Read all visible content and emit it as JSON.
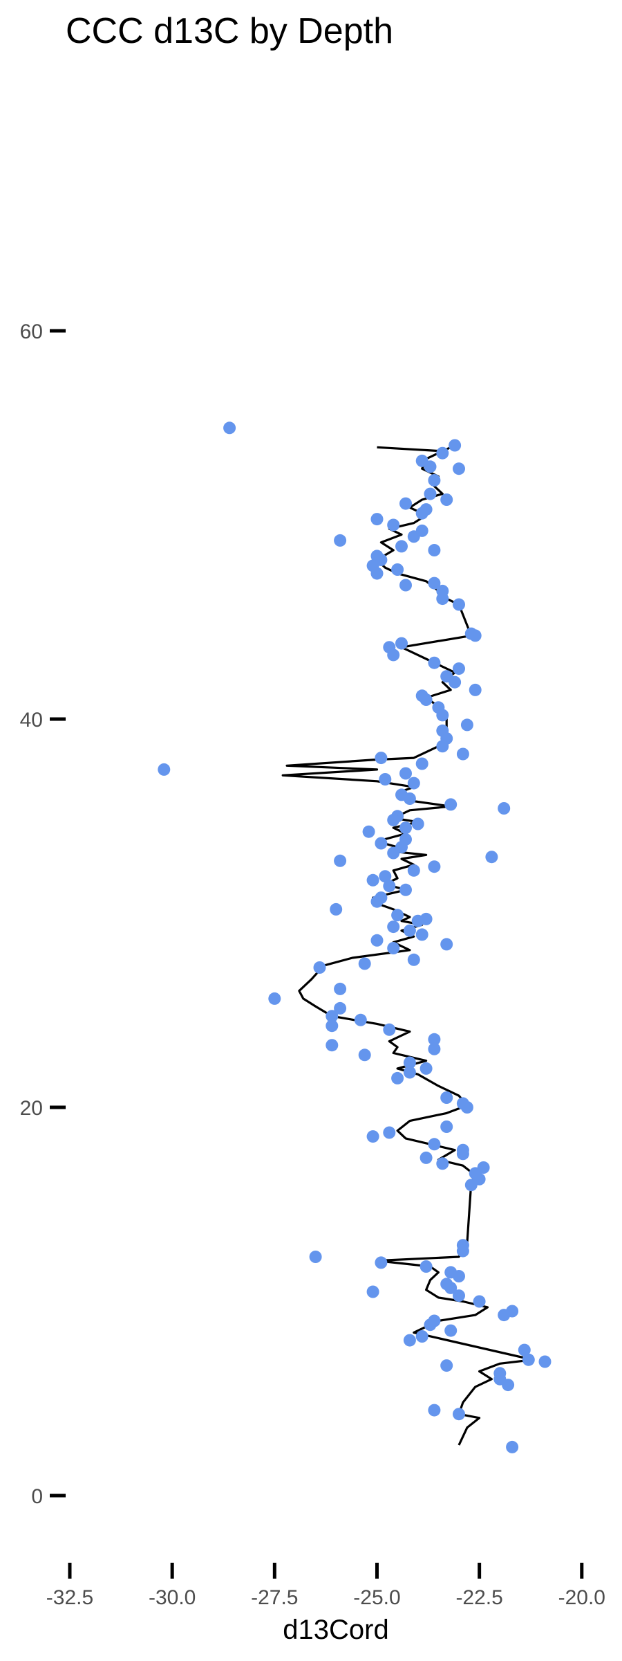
{
  "chart_data": {
    "type": "scatter",
    "title": "CCC d13C by Depth",
    "xlabel": "d13Cord",
    "ylabel": "",
    "xlim": [
      -33.0,
      -19.9
    ],
    "ylim": [
      -3.5,
      64
    ],
    "xticks": [
      -32.5,
      -30.0,
      -27.5,
      -25.0,
      -22.5,
      -20.0
    ],
    "xtick_labels": [
      "-32.5",
      "-30.0",
      "-27.5",
      "-25.0",
      "-22.5",
      "-20.0"
    ],
    "yticks": [
      0,
      20,
      40,
      60
    ],
    "ytick_labels": [
      "0",
      "20",
      "40",
      "60"
    ],
    "grid": false,
    "colors": {
      "points": "#6495ed",
      "line": "#000000"
    },
    "series": [
      {
        "type": "scatter",
        "points": [
          [
            -28.6,
            55.0
          ],
          [
            -30.2,
            37.4
          ],
          [
            -27.5,
            25.6
          ],
          [
            -26.5,
            12.3
          ],
          [
            -25.1,
            10.5
          ],
          [
            -23.1,
            54.1
          ],
          [
            -23.4,
            53.7
          ],
          [
            -23.9,
            53.3
          ],
          [
            -23.7,
            53.0
          ],
          [
            -23.0,
            52.9
          ],
          [
            -23.6,
            52.3
          ],
          [
            -23.7,
            51.6
          ],
          [
            -23.3,
            51.3
          ],
          [
            -24.3,
            51.1
          ],
          [
            -23.8,
            50.8
          ],
          [
            -23.9,
            50.6
          ],
          [
            -25.0,
            50.3
          ],
          [
            -24.6,
            50.0
          ],
          [
            -23.9,
            49.7
          ],
          [
            -24.1,
            49.4
          ],
          [
            -25.9,
            49.2
          ],
          [
            -24.4,
            48.9
          ],
          [
            -23.6,
            48.7
          ],
          [
            -25.0,
            48.4
          ],
          [
            -24.9,
            48.2
          ],
          [
            -25.1,
            47.9
          ],
          [
            -24.5,
            47.7
          ],
          [
            -25.0,
            47.5
          ],
          [
            -23.6,
            47.0
          ],
          [
            -24.3,
            46.9
          ],
          [
            -23.4,
            46.6
          ],
          [
            -23.4,
            46.2
          ],
          [
            -23.0,
            45.9
          ],
          [
            -22.7,
            44.4
          ],
          [
            -22.6,
            44.3
          ],
          [
            -24.4,
            43.9
          ],
          [
            -24.7,
            43.7
          ],
          [
            -24.6,
            43.3
          ],
          [
            -23.6,
            42.9
          ],
          [
            -23.0,
            42.6
          ],
          [
            -23.3,
            42.2
          ],
          [
            -23.1,
            41.9
          ],
          [
            -22.6,
            41.5
          ],
          [
            -23.9,
            41.2
          ],
          [
            -23.8,
            41.0
          ],
          [
            -23.5,
            40.6
          ],
          [
            -23.4,
            40.2
          ],
          [
            -22.8,
            39.7
          ],
          [
            -23.4,
            39.4
          ],
          [
            -23.3,
            39.0
          ],
          [
            -23.4,
            38.6
          ],
          [
            -22.9,
            38.2
          ],
          [
            -24.9,
            38.0
          ],
          [
            -23.9,
            37.7
          ],
          [
            -24.3,
            37.2
          ],
          [
            -24.8,
            36.9
          ],
          [
            -24.1,
            36.7
          ],
          [
            -24.4,
            36.1
          ],
          [
            -24.2,
            35.9
          ],
          [
            -23.2,
            35.6
          ],
          [
            -21.9,
            35.4
          ],
          [
            -24.5,
            35.0
          ],
          [
            -24.6,
            34.8
          ],
          [
            -24.0,
            34.6
          ],
          [
            -24.3,
            34.4
          ],
          [
            -25.2,
            34.2
          ],
          [
            -24.3,
            33.8
          ],
          [
            -24.9,
            33.6
          ],
          [
            -24.4,
            33.4
          ],
          [
            -24.6,
            33.1
          ],
          [
            -22.2,
            32.9
          ],
          [
            -25.9,
            32.7
          ],
          [
            -23.6,
            32.4
          ],
          [
            -24.1,
            32.2
          ],
          [
            -24.8,
            31.9
          ],
          [
            -25.1,
            31.7
          ],
          [
            -24.7,
            31.4
          ],
          [
            -24.3,
            31.2
          ],
          [
            -24.9,
            30.8
          ],
          [
            -25.0,
            30.6
          ],
          [
            -26.0,
            30.2
          ],
          [
            -24.5,
            29.9
          ],
          [
            -23.8,
            29.7
          ],
          [
            -24.0,
            29.6
          ],
          [
            -24.6,
            29.3
          ],
          [
            -24.2,
            29.1
          ],
          [
            -23.9,
            28.9
          ],
          [
            -25.0,
            28.6
          ],
          [
            -23.3,
            28.4
          ],
          [
            -24.6,
            28.2
          ],
          [
            -24.1,
            27.6
          ],
          [
            -25.3,
            27.4
          ],
          [
            -26.4,
            27.2
          ],
          [
            -25.9,
            26.1
          ],
          [
            -25.9,
            25.1
          ],
          [
            -26.1,
            24.7
          ],
          [
            -26.1,
            24.2
          ],
          [
            -25.4,
            24.5
          ],
          [
            -24.7,
            24.0
          ],
          [
            -23.6,
            23.5
          ],
          [
            -23.6,
            23.0
          ],
          [
            -26.1,
            23.2
          ],
          [
            -25.3,
            22.7
          ],
          [
            -24.2,
            22.3
          ],
          [
            -23.8,
            22.0
          ],
          [
            -24.2,
            21.8
          ],
          [
            -24.5,
            21.5
          ],
          [
            -23.3,
            20.5
          ],
          [
            -22.9,
            20.2
          ],
          [
            -22.8,
            20.0
          ],
          [
            -23.3,
            19.0
          ],
          [
            -24.7,
            18.7
          ],
          [
            -25.1,
            18.5
          ],
          [
            -23.6,
            18.1
          ],
          [
            -22.9,
            17.8
          ],
          [
            -22.9,
            17.6
          ],
          [
            -23.8,
            17.4
          ],
          [
            -23.4,
            17.1
          ],
          [
            -22.4,
            16.9
          ],
          [
            -22.6,
            16.6
          ],
          [
            -22.5,
            16.3
          ],
          [
            -22.7,
            16.0
          ],
          [
            -22.9,
            12.9
          ],
          [
            -22.9,
            12.6
          ],
          [
            -24.9,
            12.0
          ],
          [
            -23.8,
            11.8
          ],
          [
            -23.2,
            11.5
          ],
          [
            -23.0,
            11.3
          ],
          [
            -23.3,
            10.9
          ],
          [
            -23.2,
            10.7
          ],
          [
            -23.0,
            10.3
          ],
          [
            -22.5,
            10.0
          ],
          [
            -21.9,
            9.3
          ],
          [
            -21.7,
            9.5
          ],
          [
            -23.6,
            9.0
          ],
          [
            -23.7,
            8.8
          ],
          [
            -23.2,
            8.5
          ],
          [
            -23.9,
            8.2
          ],
          [
            -24.2,
            8.0
          ],
          [
            -21.4,
            7.5
          ],
          [
            -21.3,
            7.0
          ],
          [
            -20.9,
            6.9
          ],
          [
            -23.3,
            6.7
          ],
          [
            -22.0,
            6.3
          ],
          [
            -22.0,
            6.0
          ],
          [
            -21.8,
            5.7
          ],
          [
            -23.6,
            4.4
          ],
          [
            -23.0,
            4.2
          ],
          [
            -21.7,
            2.5
          ]
        ]
      },
      {
        "type": "line",
        "points": [
          [
            -25.0,
            54.0
          ],
          [
            -23.4,
            53.8
          ],
          [
            -23.2,
            54.0
          ],
          [
            -23.8,
            53.4
          ],
          [
            -23.9,
            52.9
          ],
          [
            -23.5,
            52.5
          ],
          [
            -23.6,
            52.0
          ],
          [
            -23.4,
            51.6
          ],
          [
            -23.9,
            51.3
          ],
          [
            -24.2,
            50.9
          ],
          [
            -23.8,
            50.5
          ],
          [
            -24.1,
            50.1
          ],
          [
            -24.7,
            49.8
          ],
          [
            -24.4,
            49.5
          ],
          [
            -24.9,
            49.1
          ],
          [
            -24.6,
            48.7
          ],
          [
            -25.0,
            48.2
          ],
          [
            -24.8,
            47.8
          ],
          [
            -24.5,
            47.5
          ],
          [
            -23.8,
            47.1
          ],
          [
            -23.5,
            46.6
          ],
          [
            -23.4,
            46.3
          ],
          [
            -23.0,
            45.9
          ],
          [
            -22.7,
            44.3
          ],
          [
            -24.4,
            43.7
          ],
          [
            -23.5,
            42.8
          ],
          [
            -23.1,
            42.4
          ],
          [
            -23.4,
            41.9
          ],
          [
            -23.2,
            41.5
          ],
          [
            -23.8,
            41.1
          ],
          [
            -23.6,
            40.8
          ],
          [
            -23.3,
            40.3
          ],
          [
            -23.3,
            39.7
          ],
          [
            -23.3,
            38.8
          ],
          [
            -23.7,
            38.4
          ],
          [
            -24.1,
            38.0
          ],
          [
            -25.1,
            37.9
          ],
          [
            -27.2,
            37.6
          ],
          [
            -25.0,
            37.4
          ],
          [
            -27.3,
            37.1
          ],
          [
            -25.0,
            36.8
          ],
          [
            -24.1,
            36.5
          ],
          [
            -24.5,
            36.2
          ],
          [
            -24.2,
            35.8
          ],
          [
            -23.2,
            35.5
          ],
          [
            -24.2,
            35.3
          ],
          [
            -24.6,
            34.9
          ],
          [
            -24.0,
            34.7
          ],
          [
            -24.6,
            34.4
          ],
          [
            -24.3,
            34.1
          ],
          [
            -25.0,
            33.7
          ],
          [
            -24.5,
            33.4
          ],
          [
            -24.7,
            33.2
          ],
          [
            -23.8,
            33.0
          ],
          [
            -24.4,
            32.8
          ],
          [
            -24.1,
            32.5
          ],
          [
            -24.6,
            32.2
          ],
          [
            -24.5,
            31.8
          ],
          [
            -24.8,
            31.5
          ],
          [
            -24.3,
            31.2
          ],
          [
            -25.1,
            30.8
          ],
          [
            -25.0,
            30.5
          ],
          [
            -24.6,
            30.2
          ],
          [
            -24.2,
            29.8
          ],
          [
            -24.4,
            29.6
          ],
          [
            -23.9,
            29.4
          ],
          [
            -24.4,
            29.1
          ],
          [
            -24.1,
            28.8
          ],
          [
            -24.6,
            28.5
          ],
          [
            -24.2,
            28.1
          ],
          [
            -25.6,
            27.7
          ],
          [
            -26.3,
            27.3
          ],
          [
            -26.6,
            26.6
          ],
          [
            -26.9,
            26.0
          ],
          [
            -26.8,
            25.6
          ],
          [
            -26.5,
            25.2
          ],
          [
            -26.1,
            24.7
          ],
          [
            -25.0,
            24.3
          ],
          [
            -24.2,
            23.9
          ],
          [
            -24.7,
            23.4
          ],
          [
            -24.5,
            23.1
          ],
          [
            -24.6,
            22.8
          ],
          [
            -23.8,
            22.4
          ],
          [
            -24.5,
            22.0
          ],
          [
            -24.0,
            21.7
          ],
          [
            -23.5,
            21.1
          ],
          [
            -23.0,
            20.6
          ],
          [
            -22.8,
            20.1
          ],
          [
            -23.3,
            19.7
          ],
          [
            -24.2,
            19.3
          ],
          [
            -24.5,
            18.8
          ],
          [
            -24.3,
            18.4
          ],
          [
            -23.1,
            17.8
          ],
          [
            -23.5,
            17.3
          ],
          [
            -22.9,
            17.0
          ],
          [
            -22.6,
            16.5
          ],
          [
            -22.7,
            16.1
          ],
          [
            -22.8,
            13.0
          ],
          [
            -23.0,
            12.3
          ],
          [
            -25.0,
            12.1
          ],
          [
            -23.7,
            11.8
          ],
          [
            -23.5,
            11.5
          ],
          [
            -23.7,
            11.1
          ],
          [
            -23.8,
            10.6
          ],
          [
            -23.5,
            10.2
          ],
          [
            -22.9,
            10.0
          ],
          [
            -22.3,
            9.7
          ],
          [
            -22.6,
            9.3
          ],
          [
            -23.5,
            9.0
          ],
          [
            -24.1,
            8.4
          ],
          [
            -21.2,
            7.0
          ],
          [
            -22.0,
            6.8
          ],
          [
            -22.5,
            6.4
          ],
          [
            -22.2,
            6.0
          ],
          [
            -22.6,
            5.6
          ],
          [
            -22.9,
            4.8
          ],
          [
            -23.0,
            4.2
          ],
          [
            -22.5,
            4.0
          ],
          [
            -22.8,
            3.5
          ],
          [
            -23.0,
            2.6
          ]
        ]
      }
    ]
  }
}
